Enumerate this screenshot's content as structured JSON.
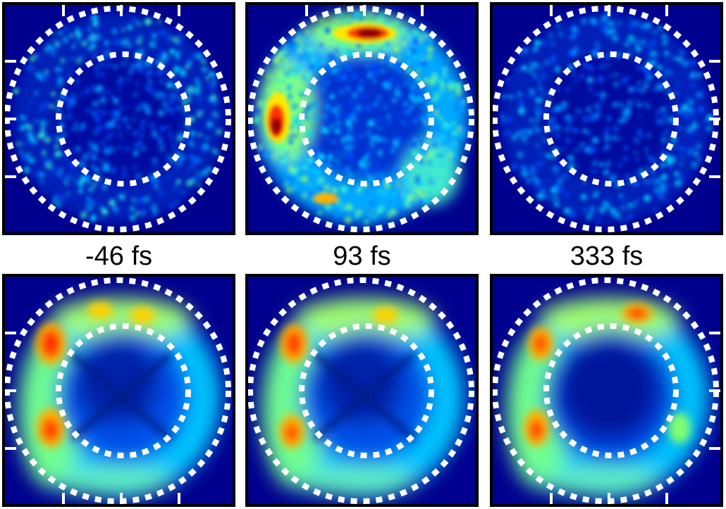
{
  "labels": {
    "col1": "-46 fs",
    "col2": "93 fs",
    "col3": "333 fs"
  },
  "colors": {
    "background": "#00008e",
    "ring_dots": "#ffffff",
    "frame": "#000000",
    "colormap": [
      "#00008e",
      "#0050ff",
      "#00d8ff",
      "#7fff7f",
      "#ffe800",
      "#ff5000",
      "#8e0000"
    ]
  }
}
